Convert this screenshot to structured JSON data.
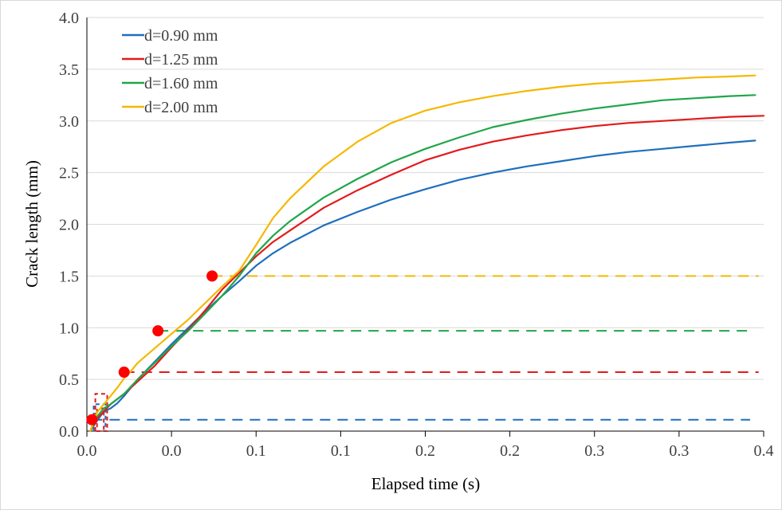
{
  "chart_data": {
    "type": "line",
    "title": "",
    "xlabel": "Elapsed time (s)",
    "ylabel": "Crack length (mm)",
    "xlim": [
      0,
      0.4
    ],
    "ylim": [
      0,
      4.0
    ],
    "x_ticks": [
      "0.0",
      "0.0",
      "0.1",
      "0.1",
      "0.2",
      "0.2",
      "0.3",
      "0.3",
      "0.4"
    ],
    "y_ticks": [
      "0.0",
      "0.5",
      "1.0",
      "1.5",
      "2.0",
      "2.5",
      "3.0",
      "3.5",
      "4.0"
    ],
    "grid": "horizontal",
    "legend_position": "top-left",
    "series": [
      {
        "name": "d=0.90 mm",
        "color": "#1f6fbd",
        "x": [
          0.002,
          0.006,
          0.01,
          0.014,
          0.018,
          0.022,
          0.026,
          0.03,
          0.04,
          0.05,
          0.06,
          0.07,
          0.08,
          0.09,
          0.1,
          0.11,
          0.12,
          0.14,
          0.16,
          0.18,
          0.2,
          0.22,
          0.24,
          0.26,
          0.28,
          0.3,
          0.32,
          0.34,
          0.36,
          0.38,
          0.395
        ],
        "y": [
          0.0,
          0.1,
          0.19,
          0.22,
          0.27,
          0.34,
          0.42,
          0.5,
          0.67,
          0.84,
          1.0,
          1.16,
          1.31,
          1.45,
          1.6,
          1.72,
          1.82,
          1.99,
          2.12,
          2.24,
          2.34,
          2.43,
          2.5,
          2.56,
          2.61,
          2.66,
          2.7,
          2.73,
          2.76,
          2.79,
          2.81
        ]
      },
      {
        "name": "d=1.25 mm",
        "color": "#e31a1c",
        "x": [
          0.002,
          0.006,
          0.01,
          0.014,
          0.018,
          0.022,
          0.026,
          0.03,
          0.04,
          0.05,
          0.06,
          0.07,
          0.08,
          0.09,
          0.1,
          0.11,
          0.12,
          0.14,
          0.16,
          0.18,
          0.2,
          0.22,
          0.24,
          0.26,
          0.28,
          0.3,
          0.32,
          0.34,
          0.36,
          0.38,
          0.4
        ],
        "y": [
          0.0,
          0.12,
          0.19,
          0.26,
          0.31,
          0.36,
          0.42,
          0.48,
          0.63,
          0.81,
          0.98,
          1.17,
          1.37,
          1.53,
          1.69,
          1.83,
          1.94,
          2.16,
          2.33,
          2.48,
          2.62,
          2.72,
          2.8,
          2.86,
          2.91,
          2.95,
          2.98,
          3.0,
          3.02,
          3.04,
          3.05
        ]
      },
      {
        "name": "d=1.60 mm",
        "color": "#1fa64a",
        "x": [
          0.002,
          0.006,
          0.01,
          0.014,
          0.018,
          0.022,
          0.026,
          0.03,
          0.04,
          0.05,
          0.06,
          0.07,
          0.08,
          0.09,
          0.1,
          0.11,
          0.12,
          0.14,
          0.16,
          0.18,
          0.2,
          0.22,
          0.24,
          0.26,
          0.28,
          0.3,
          0.32,
          0.34,
          0.36,
          0.38,
          0.395
        ],
        "y": [
          0.0,
          0.14,
          0.22,
          0.26,
          0.31,
          0.36,
          0.43,
          0.5,
          0.66,
          0.82,
          0.97,
          1.14,
          1.31,
          1.5,
          1.72,
          1.89,
          2.03,
          2.26,
          2.44,
          2.6,
          2.73,
          2.84,
          2.94,
          3.01,
          3.07,
          3.12,
          3.16,
          3.2,
          3.22,
          3.24,
          3.25
        ]
      },
      {
        "name": "d=2.00 mm",
        "color": "#f5b800",
        "x": [
          0.002,
          0.006,
          0.01,
          0.014,
          0.018,
          0.022,
          0.026,
          0.03,
          0.04,
          0.05,
          0.06,
          0.07,
          0.08,
          0.09,
          0.1,
          0.11,
          0.12,
          0.14,
          0.16,
          0.18,
          0.2,
          0.22,
          0.24,
          0.26,
          0.28,
          0.3,
          0.32,
          0.34,
          0.36,
          0.38,
          0.395
        ],
        "y": [
          0.0,
          0.18,
          0.26,
          0.34,
          0.42,
          0.51,
          0.58,
          0.66,
          0.8,
          0.94,
          1.08,
          1.24,
          1.4,
          1.55,
          1.8,
          2.06,
          2.25,
          2.56,
          2.8,
          2.98,
          3.1,
          3.18,
          3.24,
          3.29,
          3.33,
          3.36,
          3.38,
          3.4,
          3.42,
          3.43,
          3.44
        ]
      }
    ],
    "thresholds": [
      {
        "series": "d=0.90 mm",
        "color": "#1f6fbd",
        "y": 0.11,
        "x_start": 0.003,
        "x_end": 0.392
      },
      {
        "series": "d=1.25 mm",
        "color": "#e31a1c",
        "y": 0.57,
        "x_start": 0.022,
        "x_end": 0.397
      },
      {
        "series": "d=1.60 mm",
        "color": "#1fa64a",
        "y": 0.97,
        "x_start": 0.042,
        "x_end": 0.392
      },
      {
        "series": "d=2.00 mm",
        "color": "#f5b800",
        "y": 1.5,
        "x_start": 0.074,
        "x_end": 0.397
      }
    ],
    "markers": {
      "color": "#ff0000",
      "points": [
        {
          "x": 0.003,
          "y": 0.11
        },
        {
          "x": 0.022,
          "y": 0.57
        },
        {
          "x": 0.042,
          "y": 0.97
        },
        {
          "x": 0.074,
          "y": 1.5
        }
      ]
    },
    "stair_lines": [
      {
        "color": "#e31a1c",
        "x": [
          0.005,
          0.005,
          0.012,
          0.012,
          0.006,
          0.006,
          0.01,
          0.01
        ],
        "y": [
          0.0,
          0.36,
          0.36,
          0.0,
          0.0,
          0.22,
          0.22,
          0.0
        ]
      },
      {
        "color": "#1f6fbd",
        "x": [
          0.004,
          0.004,
          0.011,
          0.011
        ],
        "y": [
          0.0,
          0.26,
          0.26,
          0.0
        ]
      }
    ]
  }
}
